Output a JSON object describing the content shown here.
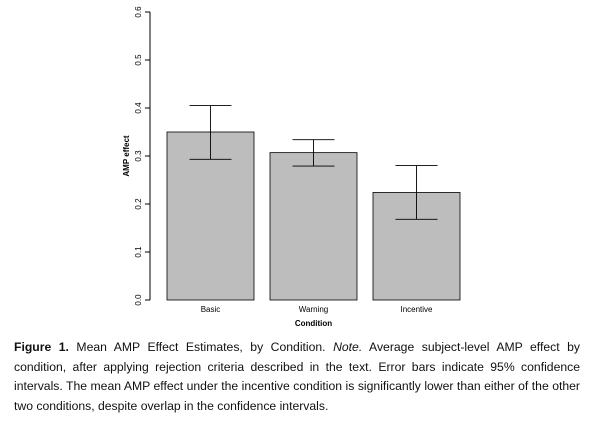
{
  "chart_data": {
    "type": "bar",
    "categories": [
      "Basic",
      "Warning",
      "Incentive"
    ],
    "values": [
      0.35,
      0.307,
      0.224
    ],
    "error_bars": {
      "lower": [
        0.293,
        0.279,
        0.168
      ],
      "upper": [
        0.405,
        0.334,
        0.28
      ]
    },
    "xlabel": "Condition",
    "ylabel": "AMP effect",
    "ylim": [
      0,
      0.6
    ],
    "yticks": [
      0.0,
      0.1,
      0.2,
      0.3,
      0.4,
      0.5,
      0.6
    ],
    "ytick_labels": [
      "0.0",
      "0.1",
      "0.2",
      "0.3",
      "0.4",
      "0.5",
      "0.6"
    ],
    "bar_fill": "#bdbdbd",
    "bar_stroke": "#000000",
    "grid": false
  },
  "caption": {
    "label": "Figure 1.",
    "text": " Mean AMP Effect Estimates, by Condition. ",
    "note_label": "Note.",
    "note_text": " Average subject-level AMP effect by condition, after applying rejection criteria described in the text. Error bars indicate 95% confidence intervals. The mean AMP effect under the incentive condition is significantly lower than either of the other two conditions, despite overlap in the confidence intervals."
  }
}
